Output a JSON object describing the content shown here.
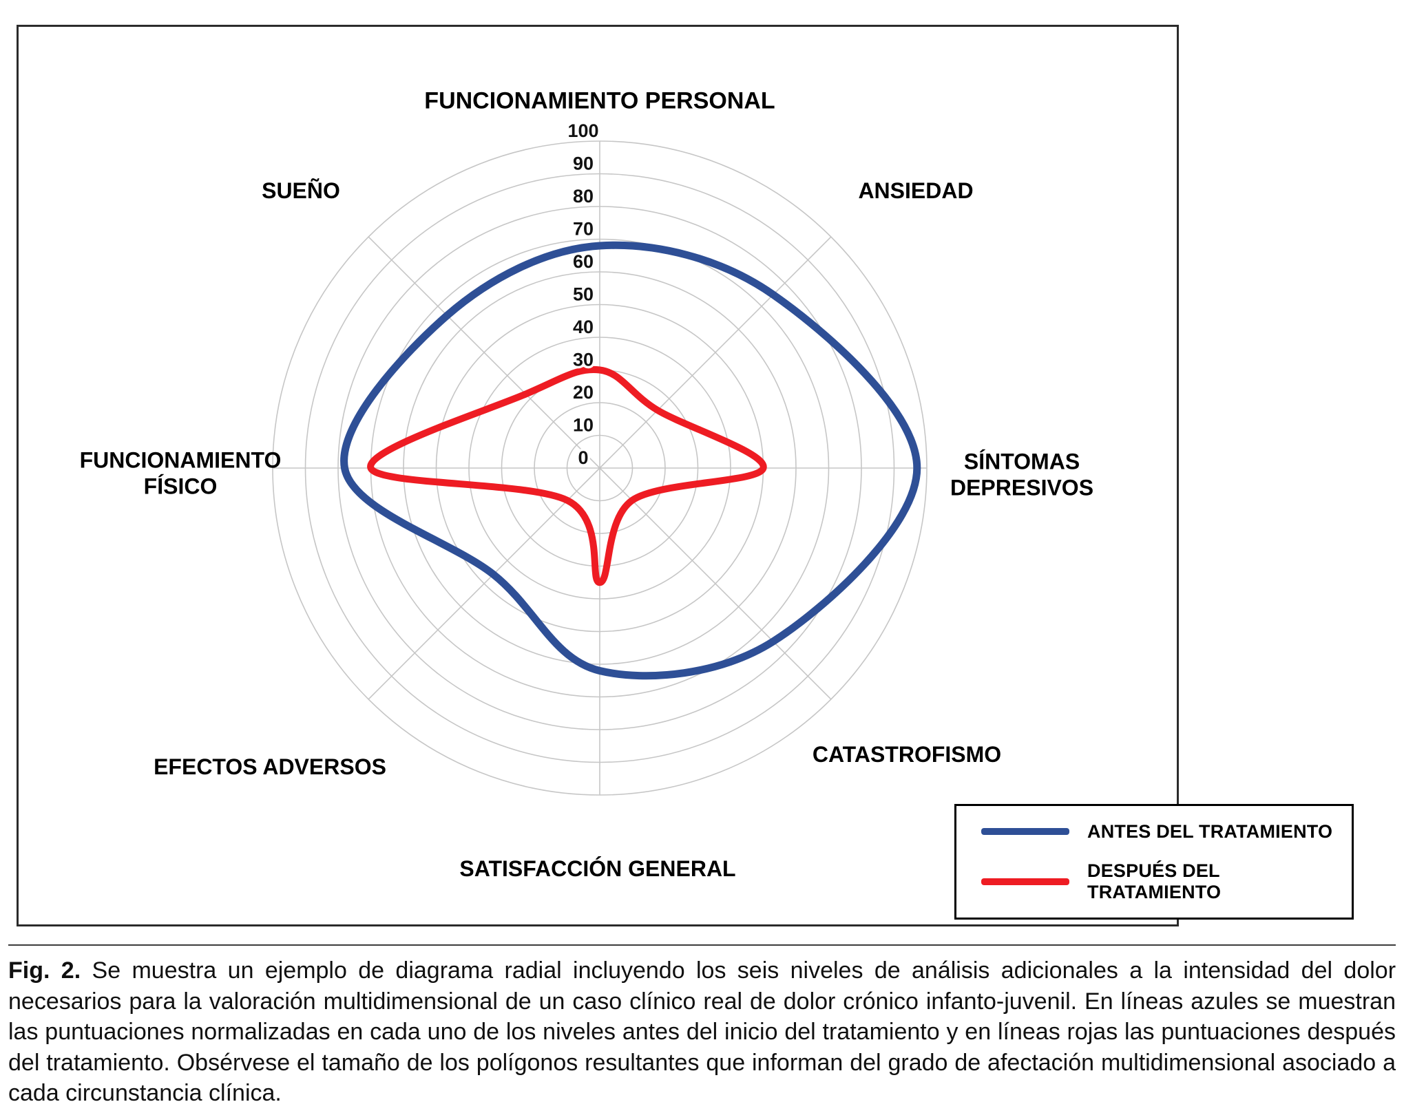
{
  "figure": {
    "caption_label": "Fig. 2.",
    "caption_text": "Se muestra un ejemplo de diagrama radial incluyendo los seis niveles de análisis adicionales a la intensidad del dolor necesarios para la valoración multidimensional de un caso clínico real de dolor crónico infanto-juvenil. En líneas azules se muestran las puntuaciones normalizadas en cada uno de los niveles antes del inicio del tratamiento y en líneas rojas las puntuaciones después del tratamiento. Obsérvese el tamaño de los polígonos resultantes que informan del grado de afectación multidimensional asociado a cada circunstancia clínica."
  },
  "chart_data": {
    "type": "radar",
    "line_style": "smooth",
    "grid": true,
    "legend_position": "bottom-right",
    "radial_range": [
      0,
      100
    ],
    "radial_ticks": [
      0,
      10,
      20,
      30,
      40,
      50,
      60,
      70,
      80,
      90,
      100
    ],
    "axes": [
      "FUNCIONAMIENTO PERSONAL",
      "ANSIEDAD",
      "SÍNTOMAS DEPRESIVOS",
      "CATASTROFISMO",
      "SATISFACCIÓN GENERAL",
      "EFECTOS ADVERSOS",
      "FUNCIONAMIENTO FÍSICO",
      "SUEÑO"
    ],
    "series": [
      {
        "name": "ANTES DEL TRATAMIENTO",
        "color": "#2e4f96",
        "values": [
          68,
          75,
          97,
          75,
          62,
          46,
          78,
          66
        ]
      },
      {
        "name": "DESPUÉS DEL TRATAMIENTO",
        "color": "#ee1c23",
        "values": [
          30,
          25,
          50,
          14,
          35,
          14,
          70,
          32
        ]
      }
    ]
  }
}
